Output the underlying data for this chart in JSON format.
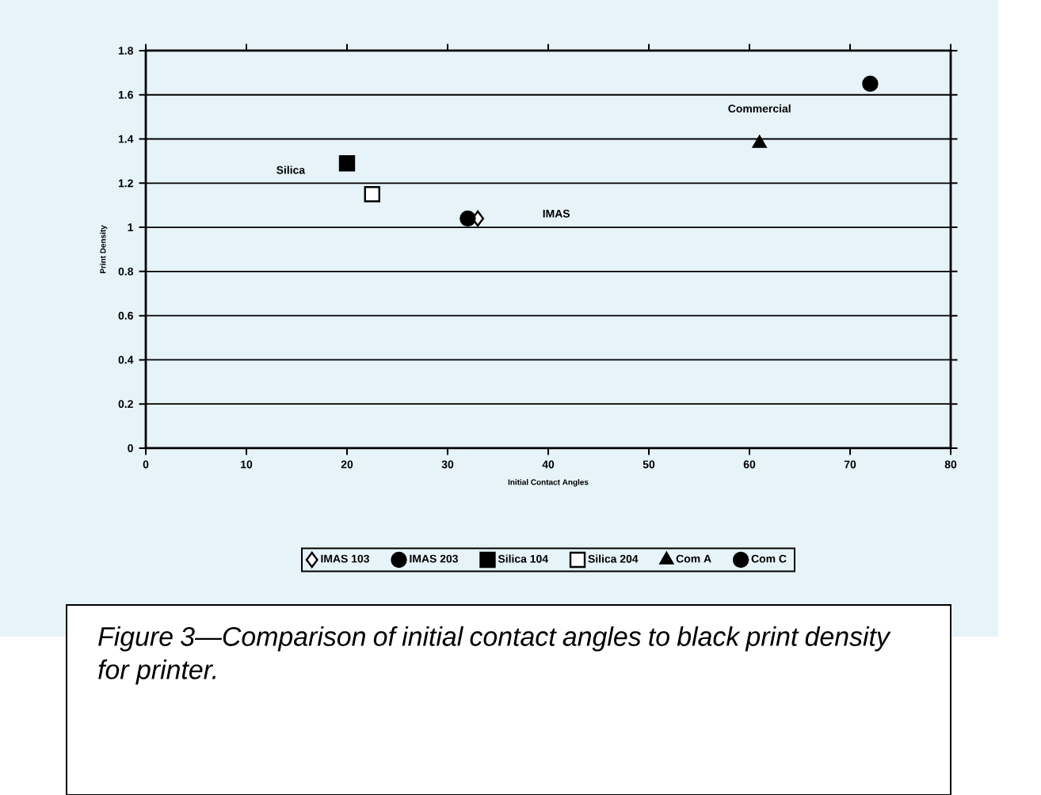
{
  "chart_data": {
    "type": "scatter",
    "xlabel": "Initial Contact Angles",
    "ylabel": "Print Density",
    "xlim": [
      0,
      80
    ],
    "xticks": [
      0,
      10,
      20,
      30,
      40,
      50,
      60,
      70,
      80
    ],
    "ylim": [
      0,
      1.8
    ],
    "yticks": [
      0,
      0.2,
      0.4,
      0.6,
      0.8,
      1,
      1.2,
      1.4,
      1.6,
      1.8
    ],
    "grid": "y",
    "legend": "bottom",
    "series": [
      {
        "name": "IMAS 103",
        "color": "#ffffff",
        "marker": "diamond",
        "x": [
          33
        ],
        "values": [
          1.04
        ]
      },
      {
        "name": "IMAS 203",
        "color": "#000000",
        "marker": "circle",
        "x": [
          32
        ],
        "values": [
          1.04
        ]
      },
      {
        "name": "Silica 104",
        "color": "#000000",
        "marker": "square",
        "x": [
          20
        ],
        "values": [
          1.29
        ]
      },
      {
        "name": "Silica 204",
        "color": "#ffffff",
        "marker": "square",
        "x": [
          22.5
        ],
        "values": [
          1.15
        ]
      },
      {
        "name": "Com A",
        "color": "#000000",
        "marker": "triangle",
        "x": [
          61
        ],
        "values": [
          1.38
        ]
      },
      {
        "name": "Com C",
        "color": "#000000",
        "marker": "circle",
        "x": [
          72
        ],
        "values": [
          1.65
        ]
      }
    ],
    "annotations": [
      "Silica",
      "IMAS",
      {
        "text": "Commercial",
        "x": 61,
        "y": 1.38
      },
      "Figure 3—Comparison of initial contact angles to black print density for printer."
    ]
  }
}
